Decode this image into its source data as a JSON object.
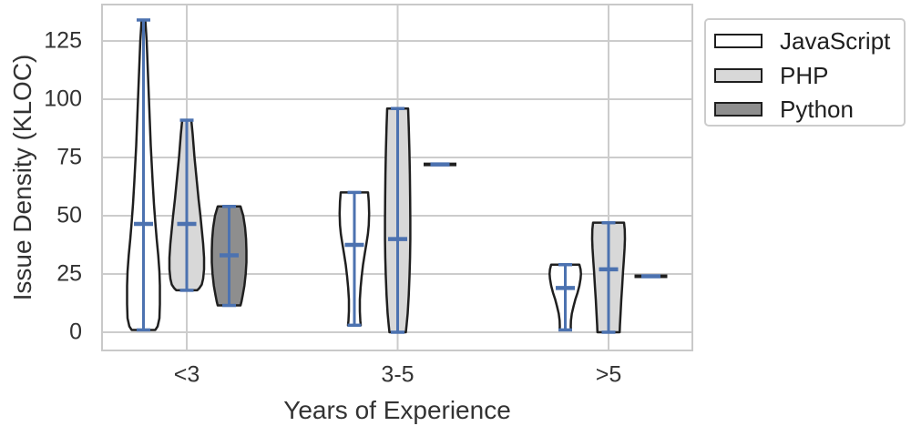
{
  "chart_data": {
    "type": "violin",
    "title": "",
    "xlabel": "Years of Experience",
    "ylabel": "Issue Density (KLOC)",
    "categories": [
      "<3",
      "3-5",
      ">5"
    ],
    "ytick_labels": [
      "0",
      "25",
      "50",
      "75",
      "100",
      "125"
    ],
    "yticks": [
      0,
      25,
      50,
      75,
      100,
      125
    ],
    "ylim": [
      -7.8,
      140.6
    ],
    "grid": true,
    "legend_position": "upper right, outside axes",
    "series": [
      {
        "name": "JavaScript",
        "fill": "#ffffff"
      },
      {
        "name": "PHP",
        "fill": "#d8d8d8"
      },
      {
        "name": "Python",
        "fill": "#8e8e8e"
      }
    ],
    "violins": [
      {
        "group": "<3",
        "series": "JavaScript",
        "kind": "violin",
        "min": 1,
        "max": 134,
        "median": 46.5,
        "profile": [
          [
            134,
            2
          ],
          [
            125,
            3.5
          ],
          [
            110,
            5
          ],
          [
            95,
            6.5
          ],
          [
            80,
            8
          ],
          [
            65,
            10
          ],
          [
            55,
            11.5
          ],
          [
            47,
            13
          ],
          [
            40,
            14.5
          ],
          [
            33,
            16.2
          ],
          [
            26,
            17.5
          ],
          [
            20,
            18
          ],
          [
            12,
            18
          ],
          [
            6,
            17.5
          ],
          [
            2.5,
            15.5
          ],
          [
            1,
            13
          ]
        ]
      },
      {
        "group": "<3",
        "series": "PHP",
        "kind": "violin",
        "min": 18,
        "max": 91,
        "median": 46.5,
        "profile": [
          [
            91,
            5
          ],
          [
            85,
            6.5
          ],
          [
            75,
            8.5
          ],
          [
            65,
            11
          ],
          [
            57,
            13
          ],
          [
            50,
            15
          ],
          [
            44,
            16.5
          ],
          [
            38,
            18
          ],
          [
            32,
            19
          ],
          [
            27,
            19
          ],
          [
            23,
            18
          ],
          [
            20.5,
            16.5
          ],
          [
            19,
            14
          ],
          [
            18,
            11.5
          ]
        ]
      },
      {
        "group": "<3",
        "series": "Python",
        "kind": "violin",
        "min": 11.5,
        "max": 54,
        "median": 33,
        "profile": [
          [
            54,
            12.5
          ],
          [
            50,
            15.5
          ],
          [
            45,
            17.5
          ],
          [
            40,
            18.6
          ],
          [
            35,
            19
          ],
          [
            30,
            19
          ],
          [
            25,
            18.2
          ],
          [
            20,
            16.8
          ],
          [
            16,
            15
          ],
          [
            13,
            13.5
          ],
          [
            11.5,
            12.5
          ]
        ]
      },
      {
        "group": "3-5",
        "series": "JavaScript",
        "kind": "violin",
        "min": 3,
        "max": 60,
        "median": 37.5,
        "profile": [
          [
            60,
            15
          ],
          [
            56,
            15.8
          ],
          [
            51,
            16.2
          ],
          [
            46,
            15.8
          ],
          [
            42,
            14.8
          ],
          [
            38,
            13.2
          ],
          [
            34,
            11.5
          ],
          [
            29,
            9.5
          ],
          [
            24,
            8
          ],
          [
            19,
            6.8
          ],
          [
            14,
            6
          ],
          [
            9,
            6
          ],
          [
            5,
            6.5
          ],
          [
            3,
            7
          ]
        ]
      },
      {
        "group": "3-5",
        "series": "PHP",
        "kind": "violin",
        "min": 0,
        "max": 96,
        "median": 40,
        "profile": [
          [
            96,
            11.5
          ],
          [
            88,
            12.2
          ],
          [
            78,
            12.9
          ],
          [
            68,
            13.4
          ],
          [
            58,
            13.7
          ],
          [
            48,
            13.9
          ],
          [
            40,
            13.9
          ],
          [
            32,
            13.6
          ],
          [
            24,
            13
          ],
          [
            16,
            12.2
          ],
          [
            8,
            11
          ],
          [
            3,
            9.8
          ],
          [
            0,
            9
          ]
        ]
      },
      {
        "group": "3-5",
        "series": "Python",
        "kind": "singleton",
        "value": 72
      },
      {
        "group": ">5",
        "series": "JavaScript",
        "kind": "violin",
        "min": 1,
        "max": 29,
        "median": 19,
        "profile": [
          [
            29,
            15.5
          ],
          [
            27,
            16.8
          ],
          [
            25,
            17.2
          ],
          [
            23,
            16.8
          ],
          [
            20,
            15.5
          ],
          [
            17,
            13.5
          ],
          [
            14,
            11
          ],
          [
            11,
            9
          ],
          [
            8,
            7.2
          ],
          [
            5,
            6.2
          ],
          [
            2.5,
            6
          ],
          [
            1,
            6.2
          ]
        ]
      },
      {
        "group": ">5",
        "series": "PHP",
        "kind": "violin",
        "min": 0,
        "max": 47,
        "median": 27,
        "profile": [
          [
            47,
            17
          ],
          [
            44,
            17.8
          ],
          [
            40,
            18
          ],
          [
            36,
            17.6
          ],
          [
            31,
            16.8
          ],
          [
            26,
            15.9
          ],
          [
            20,
            15
          ],
          [
            14,
            14
          ],
          [
            8,
            13.2
          ],
          [
            3,
            12.5
          ],
          [
            0,
            12.2
          ]
        ]
      },
      {
        "group": ">5",
        "series": "Python",
        "kind": "singleton",
        "value": 24
      }
    ]
  },
  "colors": {
    "stat_blue": "#4c72b0",
    "violin_edge": "#1f1f1f",
    "grid": "#cccccc",
    "spine": "#c9c9c9",
    "text": "#333333",
    "background": "#ffffff"
  }
}
